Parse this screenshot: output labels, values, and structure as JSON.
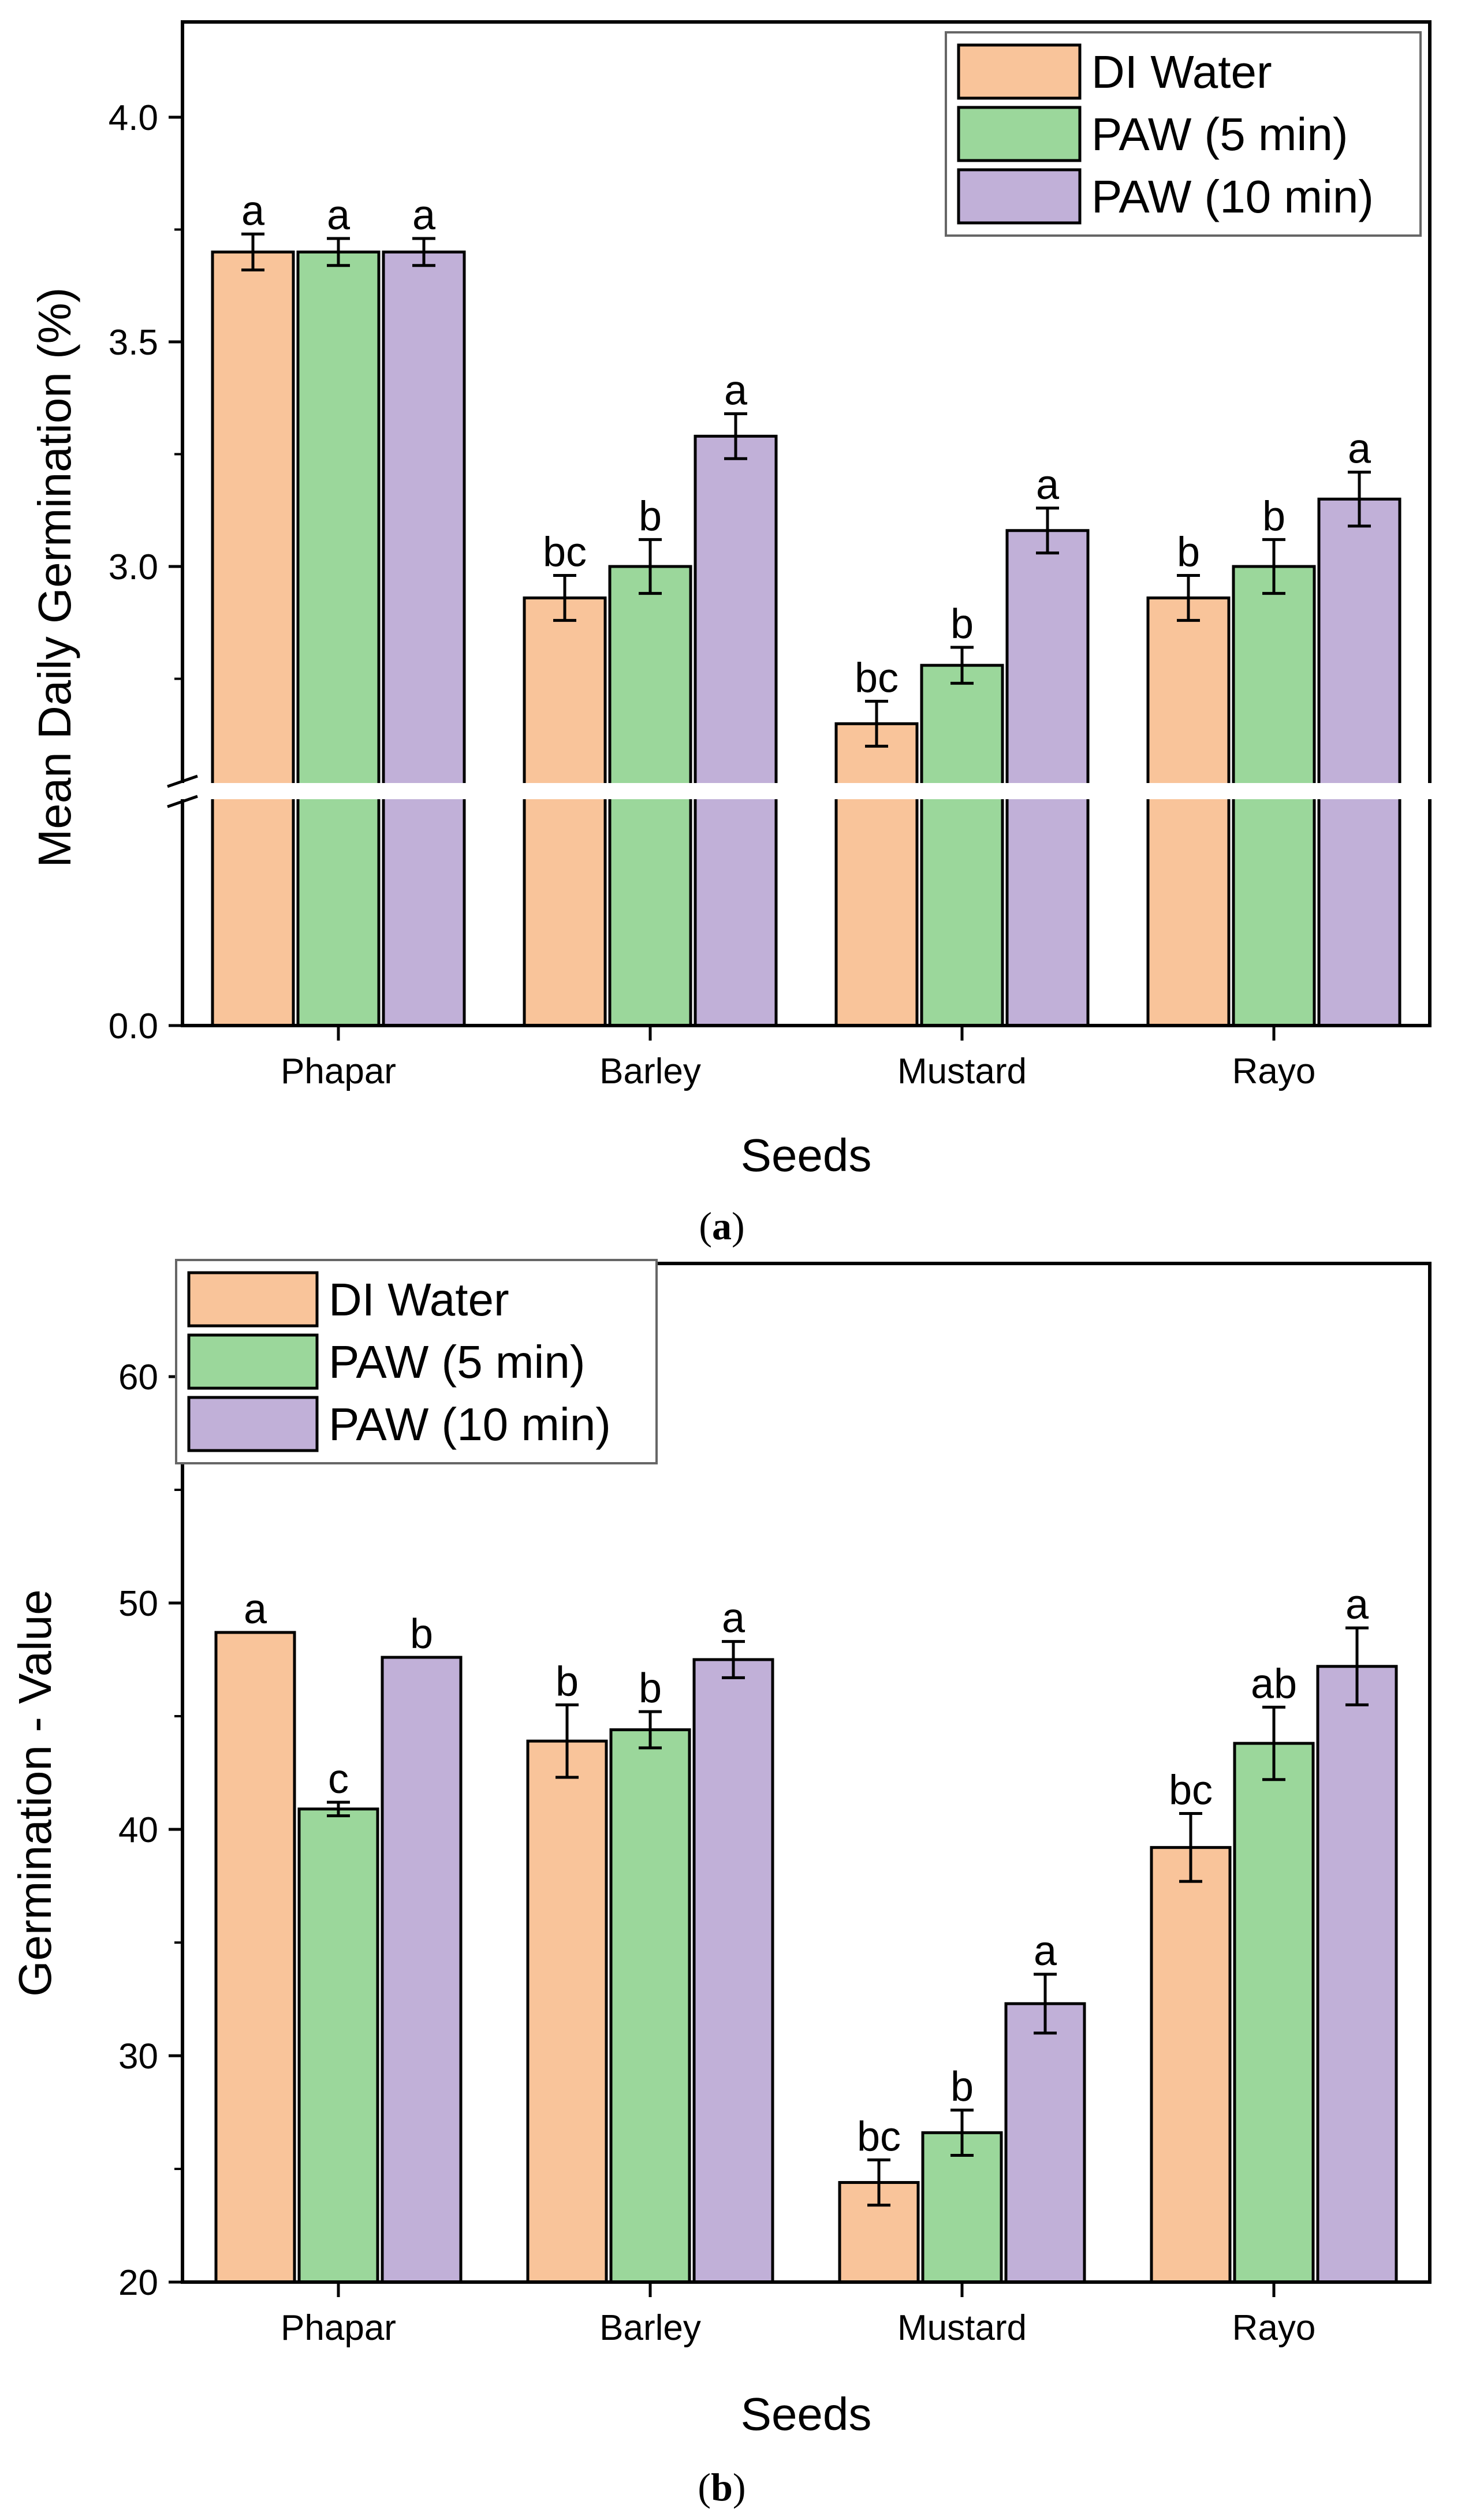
{
  "colors": {
    "DI Water": "#f9c49a",
    "PAW (5 min)": "#9bd79b",
    "PAW (10 min)": "#c1b0d8",
    "axis": "#000000"
  },
  "chart_data": [
    {
      "panel_label": "a",
      "type": "bar",
      "title": "",
      "xlabel": "Seeds",
      "ylabel": "Mean Daily Germination (%)",
      "categories": [
        "Phapar",
        "Barley",
        "Mustard",
        "Rayo"
      ],
      "series": [
        {
          "name": "DI Water",
          "values": [
            3.7,
            2.93,
            2.65,
            2.93
          ],
          "errors": [
            0.04,
            0.05,
            0.05,
            0.05
          ],
          "letters": [
            "a",
            "bc",
            "bc",
            "b"
          ]
        },
        {
          "name": "PAW (5 min)",
          "values": [
            3.7,
            3.0,
            2.78,
            3.0
          ],
          "errors": [
            0.03,
            0.06,
            0.04,
            0.06
          ],
          "letters": [
            "a",
            "b",
            "b",
            "b"
          ]
        },
        {
          "name": "PAW (10 min)",
          "values": [
            3.7,
            3.29,
            3.08,
            3.15
          ],
          "errors": [
            0.03,
            0.05,
            0.05,
            0.06
          ],
          "letters": [
            "a",
            "a",
            "a",
            "a"
          ]
        }
      ],
      "axis_break": {
        "lower": [
          0.0,
          0.0
        ],
        "upper": [
          2.5,
          4.25
        ]
      },
      "yticks_lower": [
        0.0
      ],
      "yticks_upper": [
        3.0,
        3.5,
        4.0
      ],
      "ytick_labels": [
        "0.0",
        "3.0",
        "3.5",
        "4.0"
      ],
      "legend_position": "top-right"
    },
    {
      "panel_label": "b",
      "type": "bar",
      "title": "",
      "xlabel": "Seeds",
      "ylabel": "Germination - Value",
      "categories": [
        "Phapar",
        "Barley",
        "Mustard",
        "Rayo"
      ],
      "series": [
        {
          "name": "DI Water",
          "values": [
            48.7,
            43.9,
            24.4,
            39.2
          ],
          "errors": [
            0.0,
            1.6,
            1.0,
            1.5
          ],
          "letters": [
            "a",
            "b",
            "bc",
            "bc"
          ]
        },
        {
          "name": "PAW (5 min)",
          "values": [
            40.9,
            44.4,
            26.6,
            43.8
          ],
          "errors": [
            0.3,
            0.8,
            1.0,
            1.6
          ],
          "letters": [
            "c",
            "b",
            "b",
            "ab"
          ]
        },
        {
          "name": "PAW (10 min)",
          "values": [
            47.6,
            47.5,
            32.3,
            47.2
          ],
          "errors": [
            0.0,
            0.8,
            1.3,
            1.7
          ],
          "letters": [
            "b",
            "a",
            "a",
            "a"
          ]
        }
      ],
      "ylim": [
        20,
        65
      ],
      "yticks": [
        20,
        30,
        40,
        50,
        60
      ],
      "ytick_labels": [
        "20",
        "30",
        "40",
        "50",
        "60"
      ],
      "legend_position": "top-left"
    }
  ]
}
